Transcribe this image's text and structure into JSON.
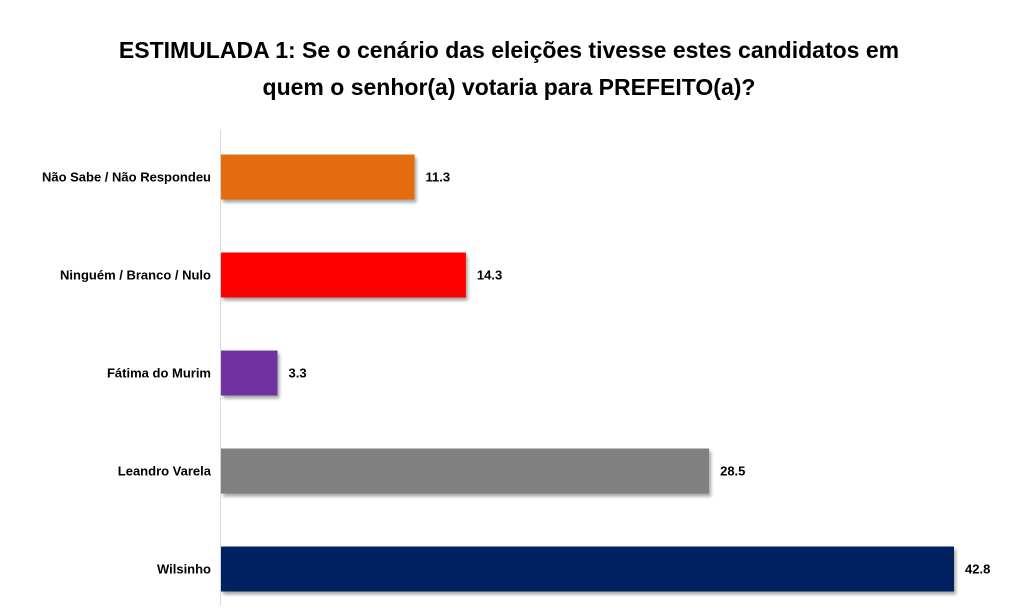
{
  "chart_data": {
    "type": "bar",
    "orientation": "horizontal",
    "title_lines": [
      "ESTIMULADA 1: Se o cenário das eleições tivesse estes candidatos em",
      "quem o senhor(a) votaria para PREFEITO(a)?"
    ],
    "categories": [
      "Não Sabe / Não Respondeu",
      "Ninguém / Branco / Nulo",
      "Fátima do Murim",
      "Leandro Varela",
      "Wilsinho"
    ],
    "values": [
      11.3,
      14.3,
      3.3,
      28.5,
      42.8
    ],
    "value_labels": [
      "11.3",
      "14.3",
      "3.3",
      "28.5",
      "42.8"
    ],
    "colors": [
      "#E36C0A",
      "#FF0000",
      "#7030A0",
      "#808080",
      "#002060"
    ],
    "xlim": [
      0,
      42.8
    ],
    "grid": false,
    "legend": "none",
    "xlabel": "",
    "ylabel": ""
  }
}
